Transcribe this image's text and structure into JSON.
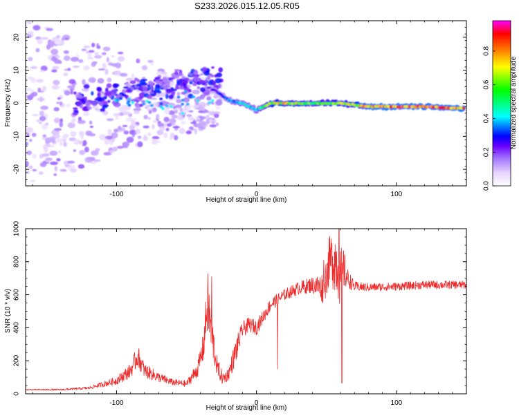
{
  "title": "S233.2026.015.12.05.R05",
  "chart_data": [
    {
      "type": "heatmap",
      "xlabel": "Height of straight line (km)",
      "ylabel": "Frequency (Hz)",
      "xlim": [
        -165,
        150
      ],
      "ylim": [
        -25,
        25
      ],
      "x_ticks": [
        -100,
        0,
        100
      ],
      "y_ticks": [
        -20,
        -10,
        0,
        10,
        20
      ],
      "colorbar": {
        "label": "Normalized spectral amplitude",
        "range": [
          0,
          0.98
        ],
        "ticks": [
          "0.0",
          "0.2",
          "0.4",
          "0.6",
          "0.8"
        ],
        "colors": [
          "#ffffff",
          "#e6d3ff",
          "#a070ff",
          "#7a00ff",
          "#0000ff",
          "#00ffff",
          "#00ff00",
          "#ffff00",
          "#ff7f00",
          "#ff0000",
          "#ff00ff"
        ]
      },
      "ridge": {
        "x": [
          -30,
          -20,
          -10,
          0,
          10,
          20,
          40,
          60,
          80,
          100,
          120,
          140
        ],
        "freq": [
          4,
          1,
          0,
          -2,
          0,
          0,
          0,
          0,
          -1,
          -1,
          -1,
          -1.5
        ],
        "amplitude": [
          0.3,
          0.4,
          0.5,
          0.45,
          0.75,
          0.8,
          0.65,
          0.7,
          0.85,
          0.9,
          0.95,
          0.9
        ]
      },
      "scatter_region": {
        "x": [
          -165,
          -25
        ],
        "freq_spread_hz": 25
      }
    },
    {
      "type": "line",
      "xlabel": "Height of straight line (km)",
      "ylabel": "SNR (10 * v/v)",
      "xlim": [
        -165,
        150
      ],
      "ylim": [
        0,
        1000
      ],
      "x_ticks": [
        -100,
        0,
        100
      ],
      "y_ticks": [
        0,
        200,
        400,
        600,
        800,
        1000
      ],
      "color": "#ee2a2a",
      "series": [
        {
          "name": "SNR",
          "x": [
            -165,
            -140,
            -120,
            -100,
            -90,
            -85,
            -80,
            -70,
            -60,
            -50,
            -42,
            -38,
            -35,
            -32,
            -28,
            -24,
            -20,
            -15,
            -10,
            -5,
            0,
            5,
            10,
            20,
            30,
            40,
            48,
            52,
            56,
            60,
            62,
            65,
            70,
            80,
            100,
            120,
            150
          ],
          "y": [
            25,
            25,
            35,
            80,
            140,
            230,
            140,
            100,
            70,
            60,
            150,
            280,
            560,
            360,
            160,
            90,
            120,
            250,
            390,
            420,
            400,
            470,
            540,
            600,
            640,
            660,
            640,
            800,
            820,
            700,
            760,
            700,
            650,
            645,
            650,
            660,
            660
          ],
          "noise": [
            3,
            5,
            8,
            25,
            45,
            70,
            45,
            30,
            20,
            20,
            50,
            90,
            200,
            140,
            60,
            40,
            40,
            80,
            50,
            45,
            45,
            40,
            40,
            35,
            40,
            50,
            100,
            150,
            200,
            180,
            140,
            60,
            30,
            25,
            25,
            25,
            25
          ]
        }
      ],
      "spikes": [
        {
          "x": -32,
          "y": 710
        },
        {
          "x": 15,
          "y": 150
        },
        {
          "x": 61,
          "y": 65
        },
        {
          "x": 48,
          "y": 810
        },
        {
          "x": 59,
          "y": 1000
        }
      ]
    }
  ]
}
